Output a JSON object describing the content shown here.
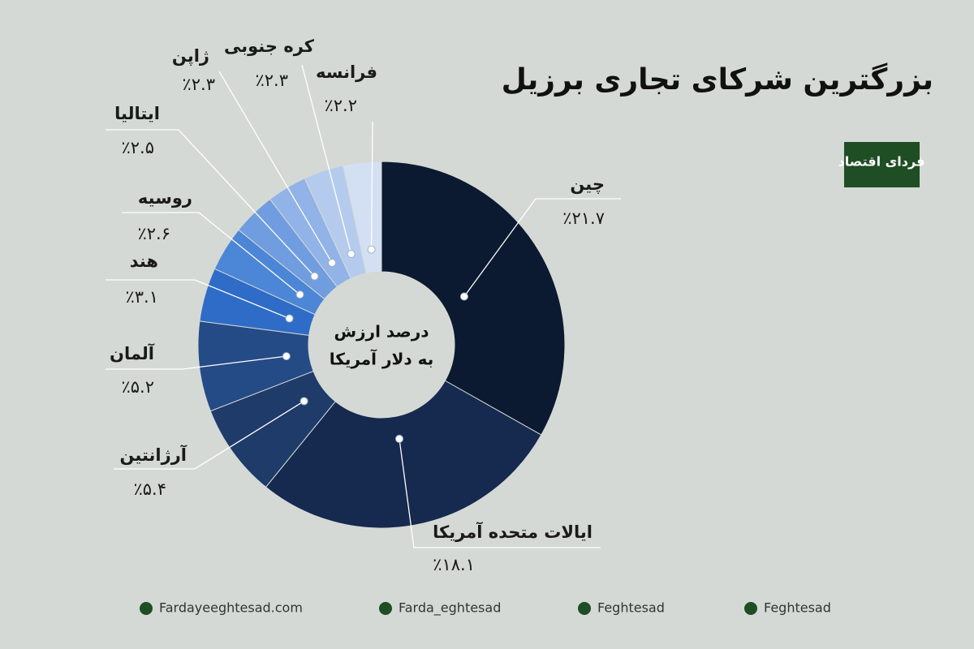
{
  "chart_data": {
    "type": "donut",
    "title": "بزرگترین شرکای تجاری برزیل",
    "center_label": [
      "درصد ارزش",
      "به دلار آمریکا"
    ],
    "categories": [
      "چین",
      "ایالات متحده آمریکا",
      "آرژانتین",
      "آلمان",
      "هند",
      "روسیه",
      "ایتالیا",
      "ژاپن",
      "کره جنوبی",
      "فرانسه"
    ],
    "values": [
      21.7,
      18.1,
      5.4,
      5.2,
      3.1,
      2.6,
      2.5,
      2.3,
      2.3,
      2.2
    ],
    "value_labels": [
      "٪۲۱.۷",
      "٪۱۸.۱",
      "٪۵.۴",
      "٪۵.۲",
      "٪۳.۱",
      "٪۲.۶",
      "٪۲.۵",
      "٪۲.۳",
      "٪۲.۳",
      "٪۲.۲"
    ],
    "colors": [
      "#0b1a30",
      "#16294f",
      "#1e3b69",
      "#254b86",
      "#2e6cc7",
      "#4c86d6",
      "#6f9ddf",
      "#91b3e7",
      "#b5cbee",
      "#d3e0f3"
    ]
  },
  "logo": "فردای اقتصاد",
  "footer": [
    "Fardayeeghtesad.com",
    "Farda_eghtesad",
    "Feghtesad",
    "Feghtesad"
  ]
}
